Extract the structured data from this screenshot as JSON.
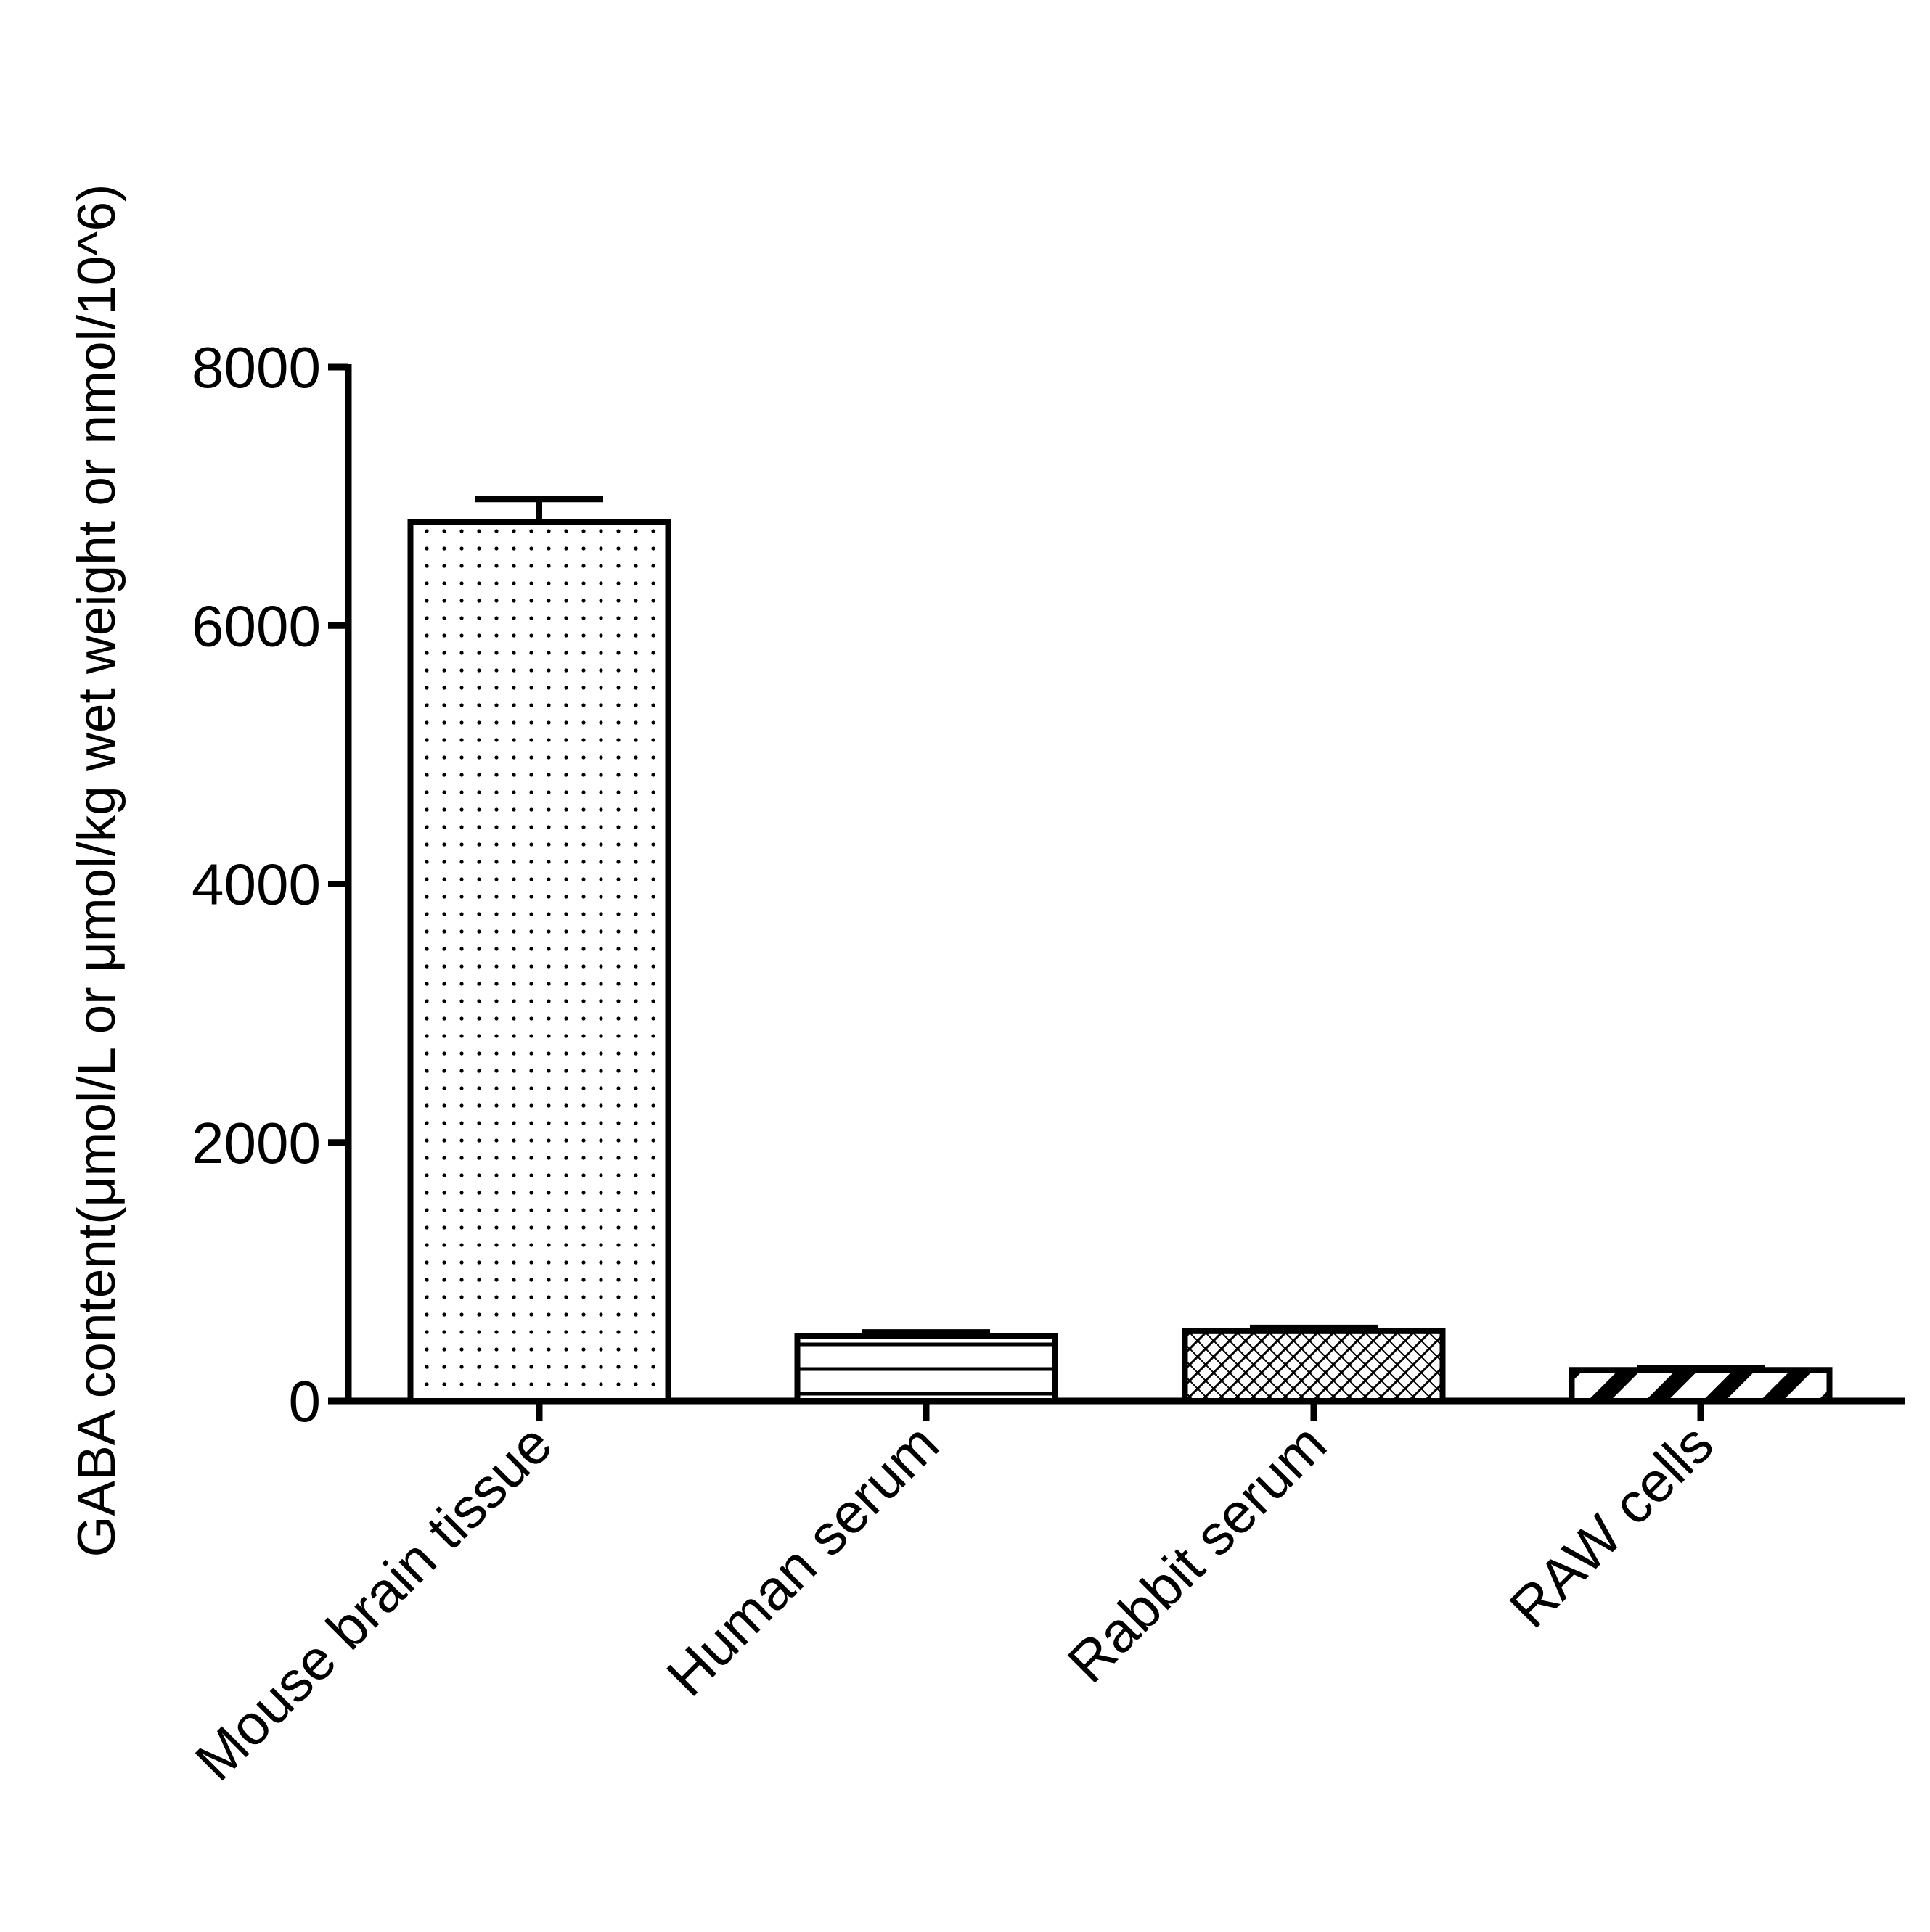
{
  "chart_data": {
    "type": "bar",
    "title": "",
    "xlabel": "",
    "ylabel": "GABA content(μmol/L or μmol/kg wet weight or nmol/10^6)",
    "ylim": [
      0,
      8000
    ],
    "yticks": [
      0,
      2000,
      4000,
      6000,
      8000
    ],
    "categories": [
      "Mouse brain tissue",
      "Human serum",
      "Rabbit serum",
      "RAW cells"
    ],
    "values": [
      6800,
      500,
      540,
      240
    ],
    "errors": [
      180,
      30,
      25,
      10
    ],
    "patterns": [
      "dots",
      "horizontal-lines",
      "crosshatch",
      "diagonal-stripes"
    ],
    "grid": false,
    "legend": "none",
    "colors": {
      "stroke": "#000000",
      "fill": "#ffffff"
    }
  }
}
